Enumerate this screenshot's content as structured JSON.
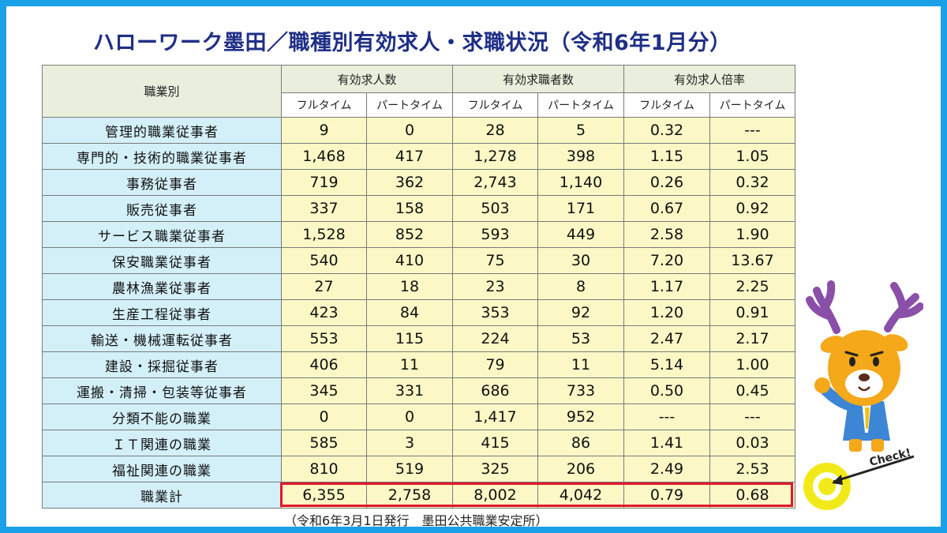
{
  "title": "ハローワーク墨田／職種別有効求人・求職状況（令和6年1月分）",
  "table": {
    "header_category": "職業別",
    "groups": [
      "有効求人数",
      "有効求職者数",
      "有効求人倍率"
    ],
    "subheaders": [
      "フルタイム",
      "パートタイム",
      "フルタイム",
      "パートタイム",
      "フルタイム",
      "パートタイム"
    ],
    "rows": [
      {
        "label": "管理的職業従事者",
        "values": [
          "9",
          "0",
          "28",
          "5",
          "0.32",
          "---"
        ]
      },
      {
        "label": "専門的・技術的職業従事者",
        "values": [
          "1,468",
          "417",
          "1,278",
          "398",
          "1.15",
          "1.05"
        ]
      },
      {
        "label": "事務従事者",
        "values": [
          "719",
          "362",
          "2,743",
          "1,140",
          "0.26",
          "0.32"
        ]
      },
      {
        "label": "販売従事者",
        "values": [
          "337",
          "158",
          "503",
          "171",
          "0.67",
          "0.92"
        ]
      },
      {
        "label": "サービス職業従事者",
        "values": [
          "1,528",
          "852",
          "593",
          "449",
          "2.58",
          "1.90"
        ]
      },
      {
        "label": "保安職業従事者",
        "values": [
          "540",
          "410",
          "75",
          "30",
          "7.20",
          "13.67"
        ]
      },
      {
        "label": "農林漁業従事者",
        "values": [
          "27",
          "18",
          "23",
          "8",
          "1.17",
          "2.25"
        ]
      },
      {
        "label": "生産工程従事者",
        "values": [
          "423",
          "84",
          "353",
          "92",
          "1.20",
          "0.91"
        ]
      },
      {
        "label": "輸送・機械運転従事者",
        "values": [
          "553",
          "115",
          "224",
          "53",
          "2.47",
          "2.17"
        ]
      },
      {
        "label": "建設・採掘従事者",
        "values": [
          "406",
          "11",
          "79",
          "11",
          "5.14",
          "1.00"
        ]
      },
      {
        "label": "運搬・清掃・包装等従事者",
        "values": [
          "345",
          "331",
          "686",
          "733",
          "0.50",
          "0.45"
        ]
      },
      {
        "label": "分類不能の職業",
        "values": [
          "0",
          "0",
          "1,417",
          "952",
          "---",
          "---"
        ]
      },
      {
        "label": "ＩＴ関連の職業",
        "values": [
          "585",
          "3",
          "415",
          "86",
          "1.41",
          "0.03"
        ]
      },
      {
        "label": "福祉関連の職業",
        "values": [
          "810",
          "519",
          "325",
          "206",
          "2.49",
          "2.53"
        ]
      },
      {
        "label": "職業計",
        "values": [
          "6,355",
          "2,758",
          "8,002",
          "4,042",
          "0.79",
          "0.68"
        ]
      }
    ]
  },
  "source_note": "（令和6年3月1日発行　墨田公共職業安定所）",
  "badge": {
    "text": "Check!"
  },
  "colors": {
    "frame": "#1aa0e6",
    "title": "#1f2f86",
    "header_bg": "#e9efdc",
    "category_bg": "#d3f0f9",
    "value_bg": "#fbf8c6",
    "highlight": "#e0182b"
  }
}
